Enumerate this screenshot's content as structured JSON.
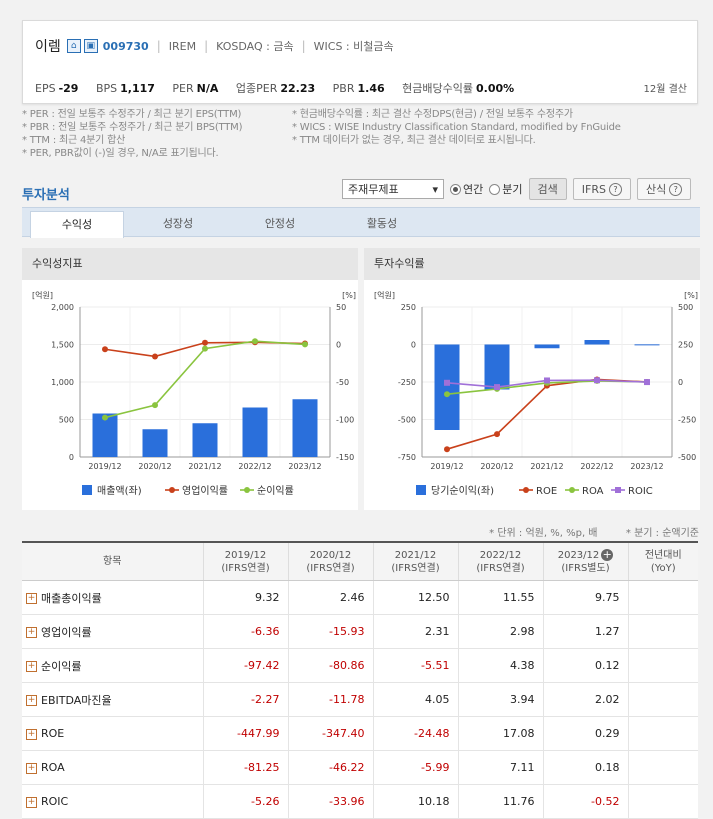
{
  "company": {
    "name": "이렘",
    "code": "009730",
    "ticker": "IREM",
    "market": "KOSDAQ : 금속",
    "wics": "WICS : 비철금속",
    "icons": [
      "house-icon",
      "building-icon"
    ]
  },
  "metrics": [
    {
      "label": "EPS",
      "value": "-29"
    },
    {
      "label": "BPS",
      "value": "1,117"
    },
    {
      "label": "PER",
      "value": "N/A"
    },
    {
      "label": "업종PER",
      "value": "22.23"
    },
    {
      "label": "PBR",
      "value": "1.46"
    },
    {
      "label": "현금배당수익률",
      "value": "0.00%"
    }
  ],
  "settlement": "12월 결산",
  "notes_left": [
    "* PER : 전일 보통주 수정주가 / 최근 분기 EPS(TTM)",
    "* PBR : 전일 보통주 수정주가 / 최근 분기 BPS(TTM)",
    "* TTM : 최근 4분기 합산",
    "* PER, PBR값이 (-)일 경우, N/A로 표기됩니다."
  ],
  "notes_right": [
    "* 현금배당수익률 : 최근 결산 수정DPS(현금) / 전일 보통주 수정주가",
    "* WICS : WISE Industry Classification Standard, modified by FnGuide",
    "* TTM 데이터가 없는 경우, 최근 결산 데이터로 표시됩니다."
  ],
  "section_title": "투자분석",
  "controls": {
    "select_value": "주재무제표",
    "radio_annual": "연간",
    "radio_quarter": "분기",
    "search": "검색",
    "ifrs": "IFRS",
    "formula": "산식"
  },
  "tabs": [
    "수익성",
    "성장성",
    "안정성",
    "활동성"
  ],
  "panel_left_title": "수익성지표",
  "panel_right_title": "투자수익률",
  "unit_note": "* 단위 : 억원, %, %p, 배",
  "unit_note2": "* 분기 : 순액기준",
  "chart_data": [
    {
      "type": "bar",
      "categories": [
        "2019/12",
        "2020/12",
        "2021/12",
        "2022/12",
        "2023/12"
      ],
      "left_unit": "[억원]",
      "right_unit": "[%]",
      "left_ticks": [
        "2,000",
        "1,500",
        "1,000",
        "500",
        "0"
      ],
      "right_ticks": [
        "50",
        "0",
        "-50",
        "-100",
        "-150"
      ],
      "ylim_left": [
        0,
        2000
      ],
      "ylim_right": [
        -150,
        50
      ],
      "series": [
        {
          "name": "매출액(좌)",
          "kind": "bar",
          "axis": "left",
          "color": "#2a6fdb",
          "values": [
            580,
            370,
            450,
            660,
            770
          ]
        },
        {
          "name": "영업이익률",
          "kind": "line",
          "axis": "right",
          "color": "#c9411b",
          "values": [
            -6.36,
            -15.93,
            2.31,
            2.98,
            1.27
          ]
        },
        {
          "name": "순이익률",
          "kind": "line",
          "axis": "right",
          "color": "#8ac43f",
          "values": [
            -97.42,
            -80.86,
            -5.51,
            4.38,
            0.12
          ]
        }
      ]
    },
    {
      "type": "bar",
      "categories": [
        "2019/12",
        "2020/12",
        "2021/12",
        "2022/12",
        "2023/12"
      ],
      "left_unit": "[억원]",
      "right_unit": "[%]",
      "left_ticks": [
        "250",
        "0",
        "-250",
        "-500",
        "-750"
      ],
      "right_ticks": [
        "500",
        "250",
        "0",
        "-250",
        "-500"
      ],
      "ylim_left": [
        -750,
        250
      ],
      "ylim_right": [
        -500,
        500
      ],
      "series": [
        {
          "name": "당기순이익(좌)",
          "kind": "bar",
          "axis": "left",
          "color": "#2a6fdb",
          "values": [
            -570,
            -300,
            -25,
            30,
            1
          ]
        },
        {
          "name": "ROE",
          "kind": "line",
          "axis": "right",
          "color": "#c9411b",
          "values": [
            -447.99,
            -347.4,
            -24.48,
            17.08,
            0.29
          ]
        },
        {
          "name": "ROA",
          "kind": "line",
          "axis": "right",
          "color": "#8ac43f",
          "values": [
            -81.25,
            -46.22,
            -5.99,
            7.11,
            0.18
          ]
        },
        {
          "name": "ROIC",
          "kind": "line",
          "axis": "right",
          "color": "#a070d8",
          "marker": "square",
          "values": [
            -5.26,
            -33.96,
            10.18,
            11.76,
            -0.52
          ]
        }
      ]
    }
  ],
  "table": {
    "headers": [
      {
        "l1": "항목",
        "l2": ""
      },
      {
        "l1": "2019/12",
        "l2": "(IFRS연결)"
      },
      {
        "l1": "2020/12",
        "l2": "(IFRS연결)"
      },
      {
        "l1": "2021/12",
        "l2": "(IFRS연결)"
      },
      {
        "l1": "2022/12",
        "l2": "(IFRS연결)"
      },
      {
        "l1": "2023/12",
        "l2": "(IFRS별도)"
      },
      {
        "l1": "전년대비",
        "l2": "(YoY)"
      }
    ],
    "rows": [
      {
        "name": "매출총이익률",
        "values": [
          "9.32",
          "2.46",
          "12.50",
          "11.55",
          "9.75",
          ""
        ]
      },
      {
        "name": "영업이익률",
        "values": [
          "-6.36",
          "-15.93",
          "2.31",
          "2.98",
          "1.27",
          ""
        ]
      },
      {
        "name": "순이익률",
        "values": [
          "-97.42",
          "-80.86",
          "-5.51",
          "4.38",
          "0.12",
          ""
        ]
      },
      {
        "name": "EBITDA마진율",
        "values": [
          "-2.27",
          "-11.78",
          "4.05",
          "3.94",
          "2.02",
          ""
        ]
      },
      {
        "name": "ROE",
        "values": [
          "-447.99",
          "-347.40",
          "-24.48",
          "17.08",
          "0.29",
          ""
        ]
      },
      {
        "name": "ROA",
        "values": [
          "-81.25",
          "-46.22",
          "-5.99",
          "7.11",
          "0.18",
          ""
        ]
      },
      {
        "name": "ROIC",
        "values": [
          "-5.26",
          "-33.96",
          "10.18",
          "11.76",
          "-0.52",
          ""
        ]
      }
    ]
  }
}
